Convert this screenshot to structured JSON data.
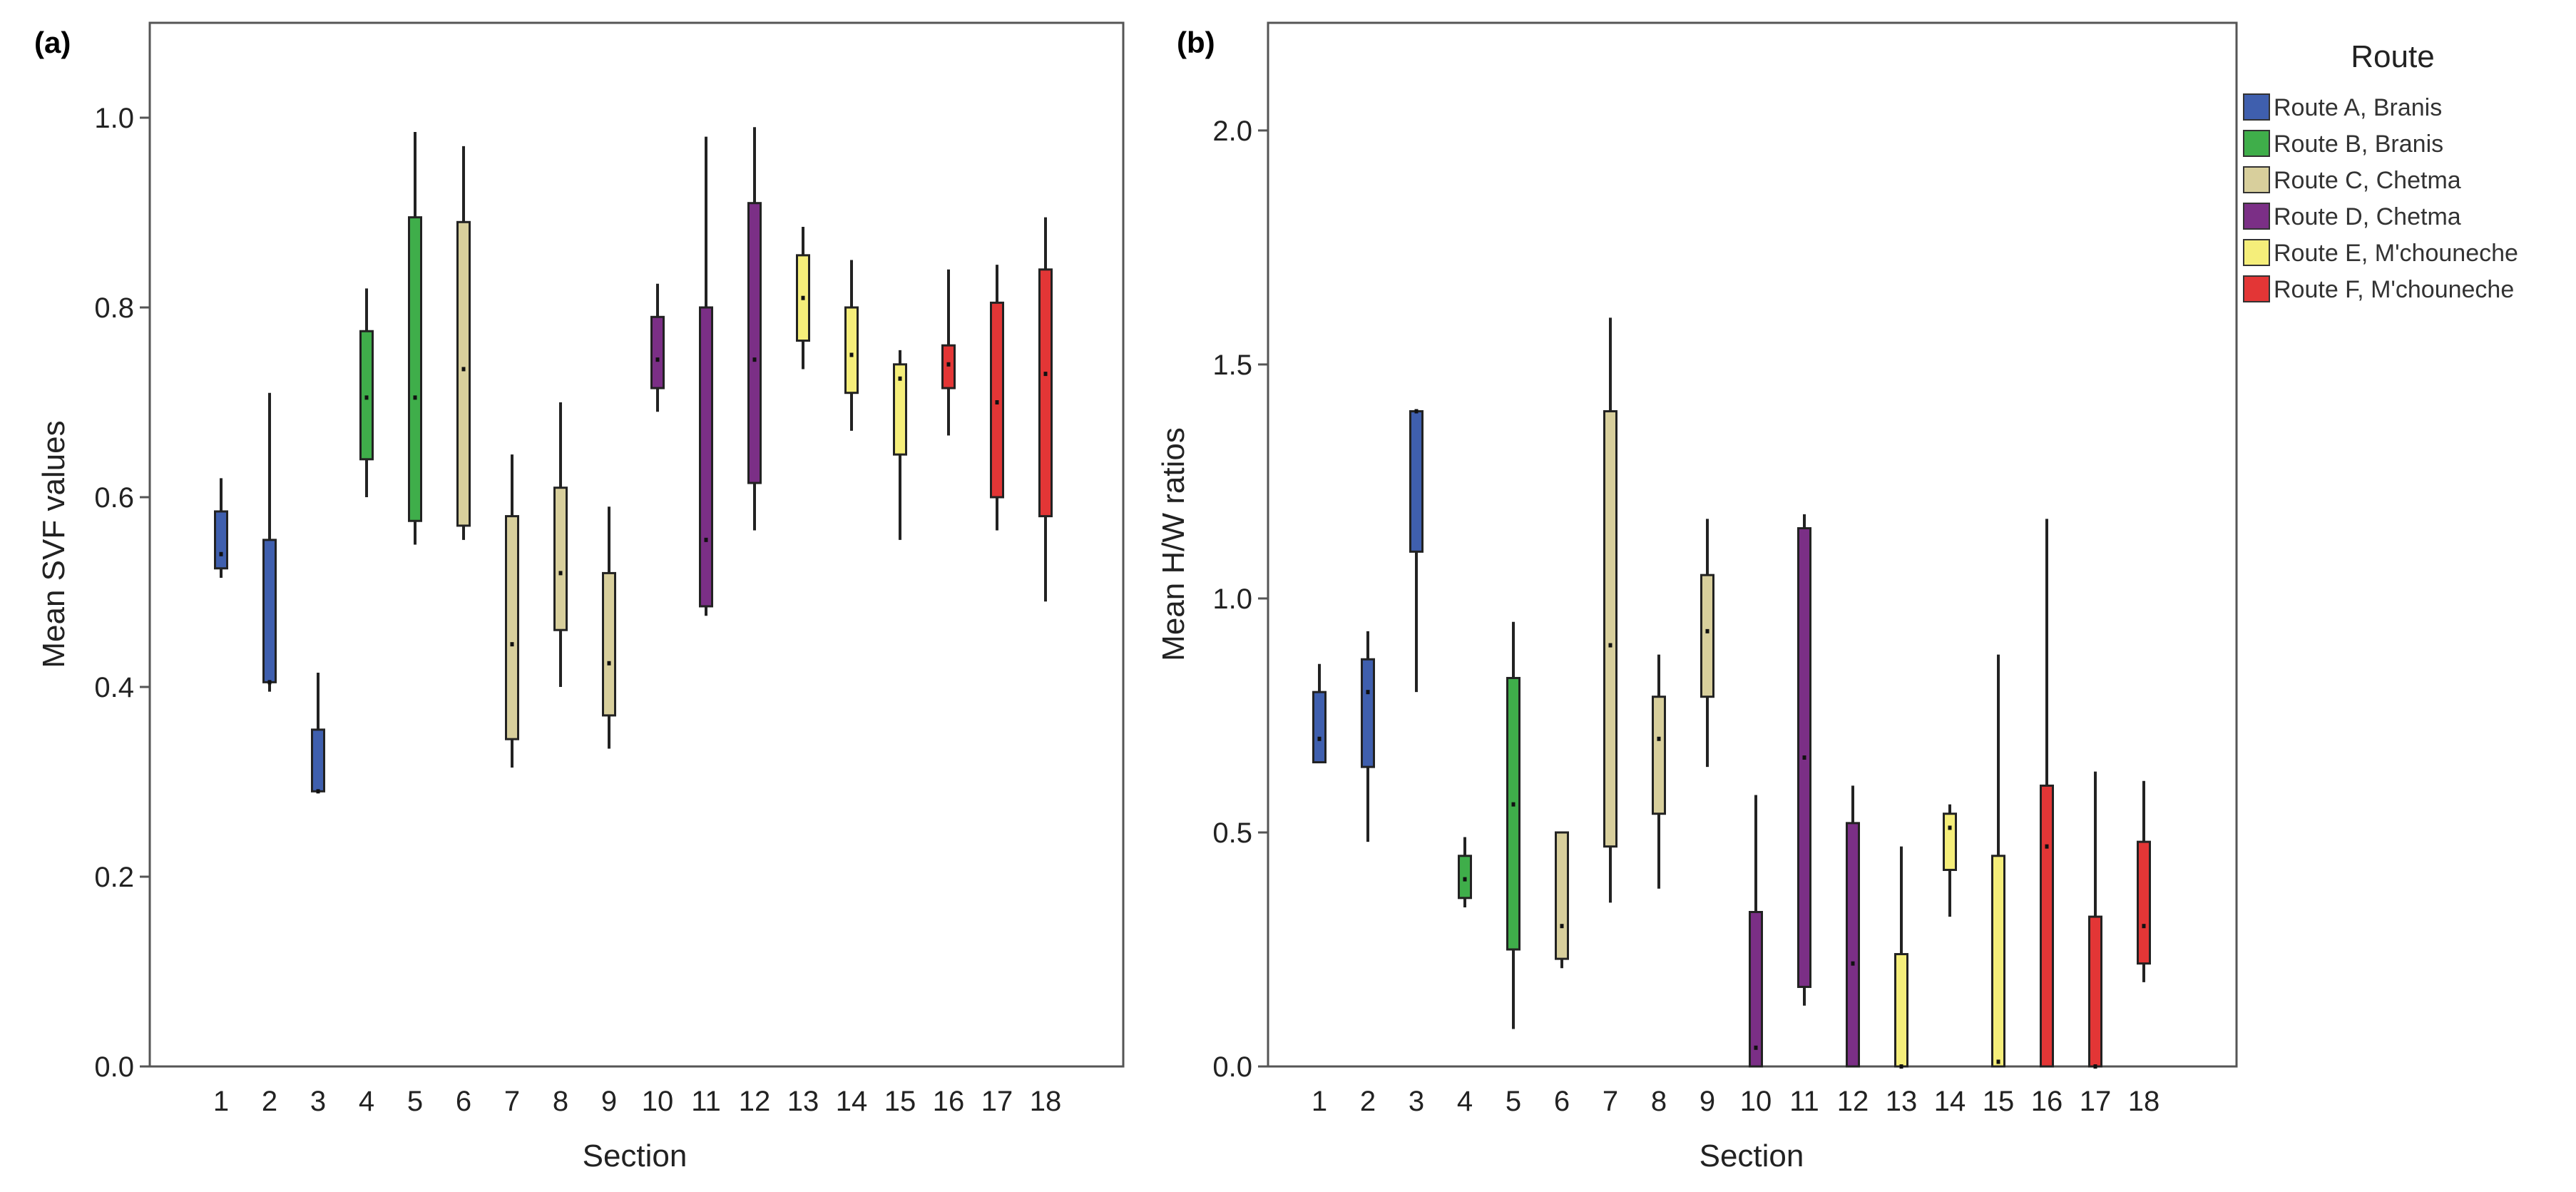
{
  "legend": {
    "title": "Route",
    "entries": [
      {
        "name": "Route A, Branis",
        "color": "#3f5fae"
      },
      {
        "name": "Route B, Branis",
        "color": "#3fae4a"
      },
      {
        "name": "Route C, Chetma",
        "color": "#d8cf9c"
      },
      {
        "name": "Route D, Chetma",
        "color": "#7b2f86"
      },
      {
        "name": "Route E, M'chouneche",
        "color": "#f5ee7a"
      },
      {
        "name": "Route F, M'chouneche",
        "color": "#e33636"
      }
    ]
  },
  "chart_data": [
    {
      "type": "boxplot",
      "panel_label": "(a)",
      "xlabel": "Section",
      "ylabel": "Mean SVF values",
      "ylim": [
        0.0,
        1.1
      ],
      "yticks": [
        "0.0",
        "0.2",
        "0.4",
        "0.6",
        "0.8",
        "1.0"
      ],
      "categories": [
        "1",
        "2",
        "3",
        "4",
        "5",
        "6",
        "7",
        "8",
        "9",
        "10",
        "11",
        "12",
        "13",
        "14",
        "15",
        "16",
        "17",
        "18"
      ],
      "boxes": [
        {
          "section": "1",
          "route": 0,
          "min": 0.515,
          "q1": 0.525,
          "median": 0.54,
          "q3": 0.585,
          "max": 0.62
        },
        {
          "section": "2",
          "route": 0,
          "min": 0.395,
          "q1": 0.405,
          "median": 0.405,
          "q3": 0.555,
          "max": 0.71
        },
        {
          "section": "3",
          "route": 0,
          "min": 0.29,
          "q1": 0.29,
          "median": 0.29,
          "q3": 0.355,
          "max": 0.415
        },
        {
          "section": "4",
          "route": 1,
          "min": 0.6,
          "q1": 0.64,
          "median": 0.705,
          "q3": 0.775,
          "max": 0.82
        },
        {
          "section": "5",
          "route": 1,
          "min": 0.55,
          "q1": 0.575,
          "median": 0.705,
          "q3": 0.895,
          "max": 0.985
        },
        {
          "section": "6",
          "route": 2,
          "min": 0.555,
          "q1": 0.57,
          "median": 0.735,
          "q3": 0.89,
          "max": 0.97
        },
        {
          "section": "7",
          "route": 2,
          "min": 0.315,
          "q1": 0.345,
          "median": 0.445,
          "q3": 0.58,
          "max": 0.645
        },
        {
          "section": "8",
          "route": 2,
          "min": 0.4,
          "q1": 0.46,
          "median": 0.52,
          "q3": 0.61,
          "max": 0.7
        },
        {
          "section": "9",
          "route": 2,
          "min": 0.335,
          "q1": 0.37,
          "median": 0.425,
          "q3": 0.52,
          "max": 0.59
        },
        {
          "section": "10",
          "route": 3,
          "min": 0.69,
          "q1": 0.715,
          "median": 0.745,
          "q3": 0.79,
          "max": 0.825
        },
        {
          "section": "11",
          "route": 3,
          "min": 0.475,
          "q1": 0.485,
          "median": 0.555,
          "q3": 0.8,
          "max": 0.98
        },
        {
          "section": "12",
          "route": 3,
          "min": 0.565,
          "q1": 0.615,
          "median": 0.745,
          "q3": 0.91,
          "max": 0.99
        },
        {
          "section": "13",
          "route": 4,
          "min": 0.735,
          "q1": 0.765,
          "median": 0.81,
          "q3": 0.855,
          "max": 0.885
        },
        {
          "section": "14",
          "route": 4,
          "min": 0.67,
          "q1": 0.71,
          "median": 0.75,
          "q3": 0.8,
          "max": 0.85
        },
        {
          "section": "15",
          "route": 4,
          "min": 0.555,
          "q1": 0.645,
          "median": 0.725,
          "q3": 0.74,
          "max": 0.755
        },
        {
          "section": "16",
          "route": 5,
          "min": 0.665,
          "q1": 0.715,
          "median": 0.74,
          "q3": 0.76,
          "max": 0.84
        },
        {
          "section": "17",
          "route": 5,
          "min": 0.565,
          "q1": 0.6,
          "median": 0.7,
          "q3": 0.805,
          "max": 0.845
        },
        {
          "section": "18",
          "route": 5,
          "min": 0.49,
          "q1": 0.58,
          "median": 0.73,
          "q3": 0.84,
          "max": 0.895
        }
      ]
    },
    {
      "type": "boxplot",
      "panel_label": "(b)",
      "xlabel": "Section",
      "ylabel": "Mean H/W ratios",
      "ylim": [
        0.0,
        2.23
      ],
      "yticks": [
        "0.0",
        "0.5",
        "1.0",
        "1.5",
        "2.0"
      ],
      "categories": [
        "1",
        "2",
        "3",
        "4",
        "5",
        "6",
        "7",
        "8",
        "9",
        "10",
        "11",
        "12",
        "13",
        "14",
        "15",
        "16",
        "17",
        "18"
      ],
      "boxes": [
        {
          "section": "1",
          "route": 0,
          "min": 0.65,
          "q1": 0.65,
          "median": 0.7,
          "q3": 0.8,
          "max": 0.86
        },
        {
          "section": "2",
          "route": 0,
          "min": 0.48,
          "q1": 0.64,
          "median": 0.8,
          "q3": 0.87,
          "max": 0.93
        },
        {
          "section": "3",
          "route": 0,
          "min": 0.8,
          "q1": 1.1,
          "median": 1.4,
          "q3": 1.4,
          "max": 1.4
        },
        {
          "section": "4",
          "route": 1,
          "min": 0.34,
          "q1": 0.36,
          "median": 0.4,
          "q3": 0.45,
          "max": 0.49
        },
        {
          "section": "5",
          "route": 1,
          "min": 0.08,
          "q1": 0.25,
          "median": 0.56,
          "q3": 0.83,
          "max": 0.95
        },
        {
          "section": "6",
          "route": 2,
          "min": 0.21,
          "q1": 0.23,
          "median": 0.3,
          "q3": 0.5,
          "max": 0.5
        },
        {
          "section": "7",
          "route": 2,
          "min": 0.35,
          "q1": 0.47,
          "median": 0.9,
          "q3": 1.4,
          "max": 1.6
        },
        {
          "section": "8",
          "route": 2,
          "min": 0.38,
          "q1": 0.54,
          "median": 0.7,
          "q3": 0.79,
          "max": 0.88
        },
        {
          "section": "9",
          "route": 2,
          "min": 0.64,
          "q1": 0.79,
          "median": 0.93,
          "q3": 1.05,
          "max": 1.17
        },
        {
          "section": "10",
          "route": 3,
          "min": 0.0,
          "q1": 0.0,
          "median": 0.04,
          "q3": 0.33,
          "max": 0.58
        },
        {
          "section": "11",
          "route": 3,
          "min": 0.13,
          "q1": 0.17,
          "median": 0.66,
          "q3": 1.15,
          "max": 1.18
        },
        {
          "section": "12",
          "route": 3,
          "min": 0.0,
          "q1": 0.0,
          "median": 0.22,
          "q3": 0.52,
          "max": 0.6
        },
        {
          "section": "13",
          "route": 4,
          "min": 0.0,
          "q1": 0.0,
          "median": 0.0,
          "q3": 0.24,
          "max": 0.47
        },
        {
          "section": "14",
          "route": 4,
          "min": 0.32,
          "q1": 0.42,
          "median": 0.51,
          "q3": 0.54,
          "max": 0.56
        },
        {
          "section": "15",
          "route": 4,
          "min": 0.0,
          "q1": 0.0,
          "median": 0.01,
          "q3": 0.45,
          "max": 0.88
        },
        {
          "section": "16",
          "route": 5,
          "min": 0.0,
          "q1": 0.0,
          "median": 0.47,
          "q3": 0.6,
          "max": 1.17
        },
        {
          "section": "17",
          "route": 5,
          "min": 0.0,
          "q1": 0.0,
          "median": 0.0,
          "q3": 0.32,
          "max": 0.63
        },
        {
          "section": "18",
          "route": 5,
          "min": 0.18,
          "q1": 0.22,
          "median": 0.3,
          "q3": 0.48,
          "max": 0.61
        }
      ]
    }
  ]
}
